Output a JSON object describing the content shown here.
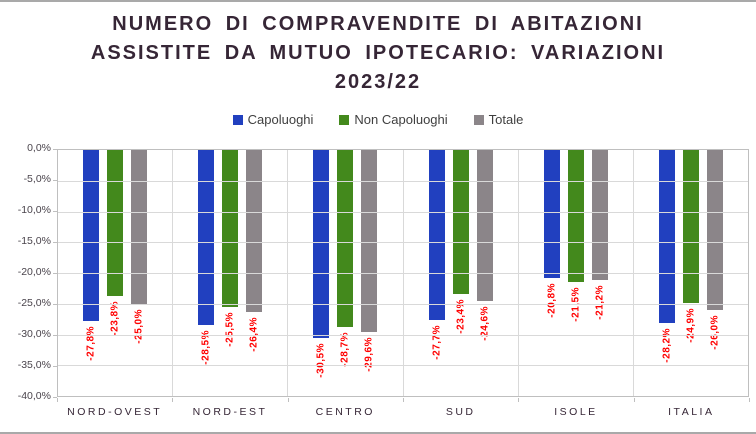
{
  "chart_data": {
    "type": "bar",
    "title": "NUMERO DI COMPRAVENDITE DI ABITAZIONI ASSISTITE DA MUTUO IPOTECARIO: VARIAZIONI 2023/22",
    "title_lines": [
      "NUMERO DI COMPRAVENDITE DI ABITAZIONI",
      "ASSISTITE DA MUTUO IPOTECARIO: VARIAZIONI",
      "2023/22"
    ],
    "categories": [
      "NORD-OVEST",
      "NORD-EST",
      "CENTRO",
      "SUD",
      "ISOLE",
      "ITALIA"
    ],
    "series": [
      {
        "name": "Capoluoghi",
        "color": "#2140bf",
        "values": [
          -27.8,
          -28.5,
          -30.5,
          -27.7,
          -20.8,
          -28.2
        ],
        "labels": [
          "-27,8%",
          "-28,5%",
          "-30,5%",
          "-27,7%",
          "-20,8%",
          "-28,2%"
        ]
      },
      {
        "name": "Non Capoluoghi",
        "color": "#43891c",
        "values": [
          -23.8,
          -25.5,
          -28.7,
          -23.4,
          -21.5,
          -24.9
        ],
        "labels": [
          "-23,8%",
          "-25,5%",
          "-28,7%",
          "-23,4%",
          "-21,5%",
          "-24,9%"
        ]
      },
      {
        "name": "Totale",
        "color": "#8b8589",
        "values": [
          -25.0,
          -26.4,
          -29.6,
          -24.6,
          -21.2,
          -26.0
        ],
        "labels": [
          "-25,0%",
          "-26,4%",
          "-29,6%",
          "-24,6%",
          "-21,2%",
          "-26,0%"
        ]
      }
    ],
    "ylim": [
      -40,
      0
    ],
    "yticks": [
      {
        "value": 0,
        "label": "0,0%"
      },
      {
        "value": -5,
        "label": "-5,0%"
      },
      {
        "value": -10,
        "label": "-10,0%"
      },
      {
        "value": -15,
        "label": "-15,0%"
      },
      {
        "value": -20,
        "label": "-20,0%"
      },
      {
        "value": -25,
        "label": "-25,0%"
      },
      {
        "value": -30,
        "label": "-30,0%"
      },
      {
        "value": -35,
        "label": "-35,0%"
      },
      {
        "value": -40,
        "label": "-40,0%"
      }
    ],
    "grid": true,
    "legend_position": "top",
    "data_label_color": "#ff0000"
  }
}
